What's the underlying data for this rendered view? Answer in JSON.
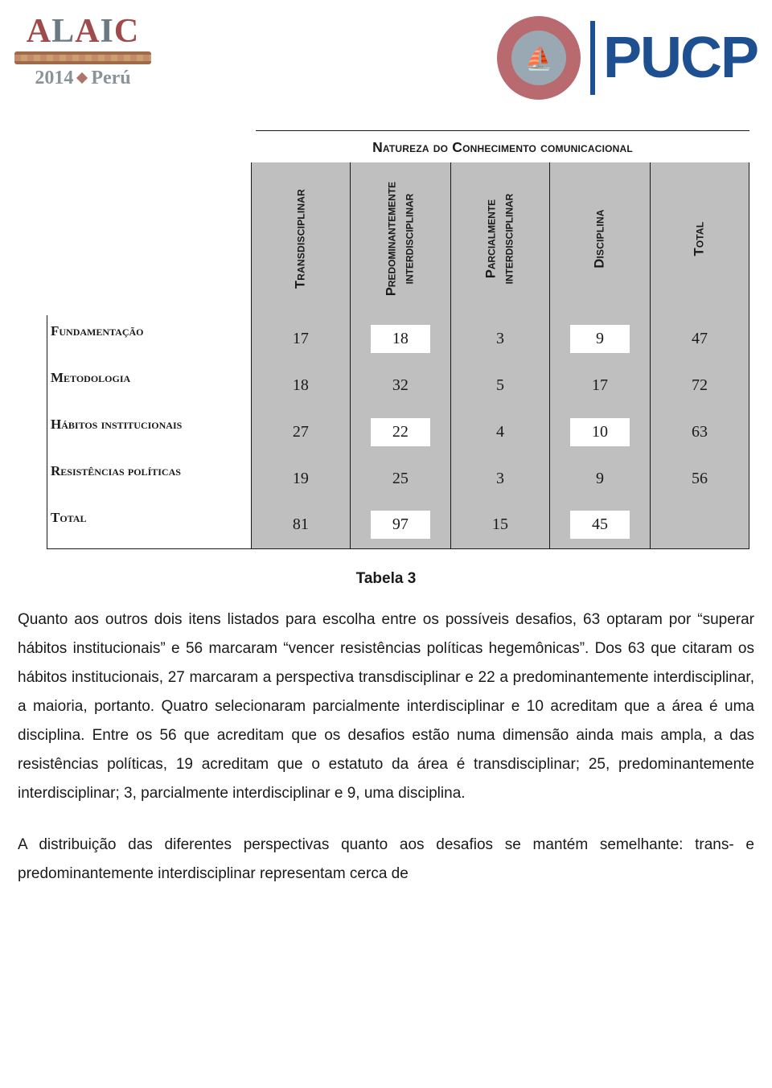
{
  "header": {
    "left": {
      "brand": "ALAIC",
      "year": "2014",
      "country": "Perú"
    },
    "right": {
      "university": "PUCP"
    }
  },
  "table": {
    "title": "Natureza do Conhecimento comunicacional",
    "columns": [
      "Transdisciplinar",
      "Predominantemente interdisciplinar",
      "Parcialmente interdisciplinar",
      "Disciplina",
      "Total"
    ],
    "row_labels": [
      "Fundamentação",
      "Metodologia",
      "Hábitos institucionais",
      "Resistências políticas",
      "Total"
    ],
    "rows": [
      [
        17,
        18,
        3,
        9,
        47
      ],
      [
        18,
        32,
        5,
        17,
        72
      ],
      [
        27,
        22,
        4,
        10,
        63
      ],
      [
        19,
        25,
        3,
        9,
        56
      ],
      [
        81,
        97,
        15,
        45,
        ""
      ]
    ],
    "white_cell_pattern": [
      [
        false,
        true,
        false,
        true,
        false
      ],
      [
        false,
        false,
        false,
        false,
        false
      ],
      [
        false,
        true,
        false,
        true,
        false
      ],
      [
        false,
        false,
        false,
        false,
        false
      ],
      [
        false,
        true,
        false,
        true,
        false
      ]
    ],
    "caption": "Tabela 3",
    "colors": {
      "grey": "#bfbfbf",
      "border": "#1a1a1a",
      "white": "#ffffff",
      "text": "#1a1a1a"
    },
    "fonts": {
      "header_smallcaps_size_pt": 12,
      "cell_number_family": "Times New Roman",
      "cell_number_size_pt": 14
    }
  },
  "paragraphs": {
    "p1": "Quanto aos outros dois itens listados para escolha entre os possíveis desafios, 63 optaram por “superar hábitos institucionais” e 56 marcaram “vencer resistências políticas hegemônicas”. Dos 63 que citaram os hábitos institucionais, 27 marcaram a perspectiva transdisciplinar e 22 a predominantemente interdisciplinar, a maioria, portanto.  Quatro selecionaram parcialmente interdisciplinar e 10 acreditam que a área é uma disciplina. Entre os 56 que acreditam que os desafios estão numa dimensão ainda mais ampla, a das resistências políticas, 19 acreditam que o estatuto da área é transdisciplinar; 25, predominantemente interdisciplinar; 3, parcialmente interdisciplinar e 9, uma disciplina.",
    "p2": "A distribuição das diferentes perspectivas quanto aos desafios se mantém semelhante: trans- e predominantemente interdisciplinar representam cerca de"
  }
}
